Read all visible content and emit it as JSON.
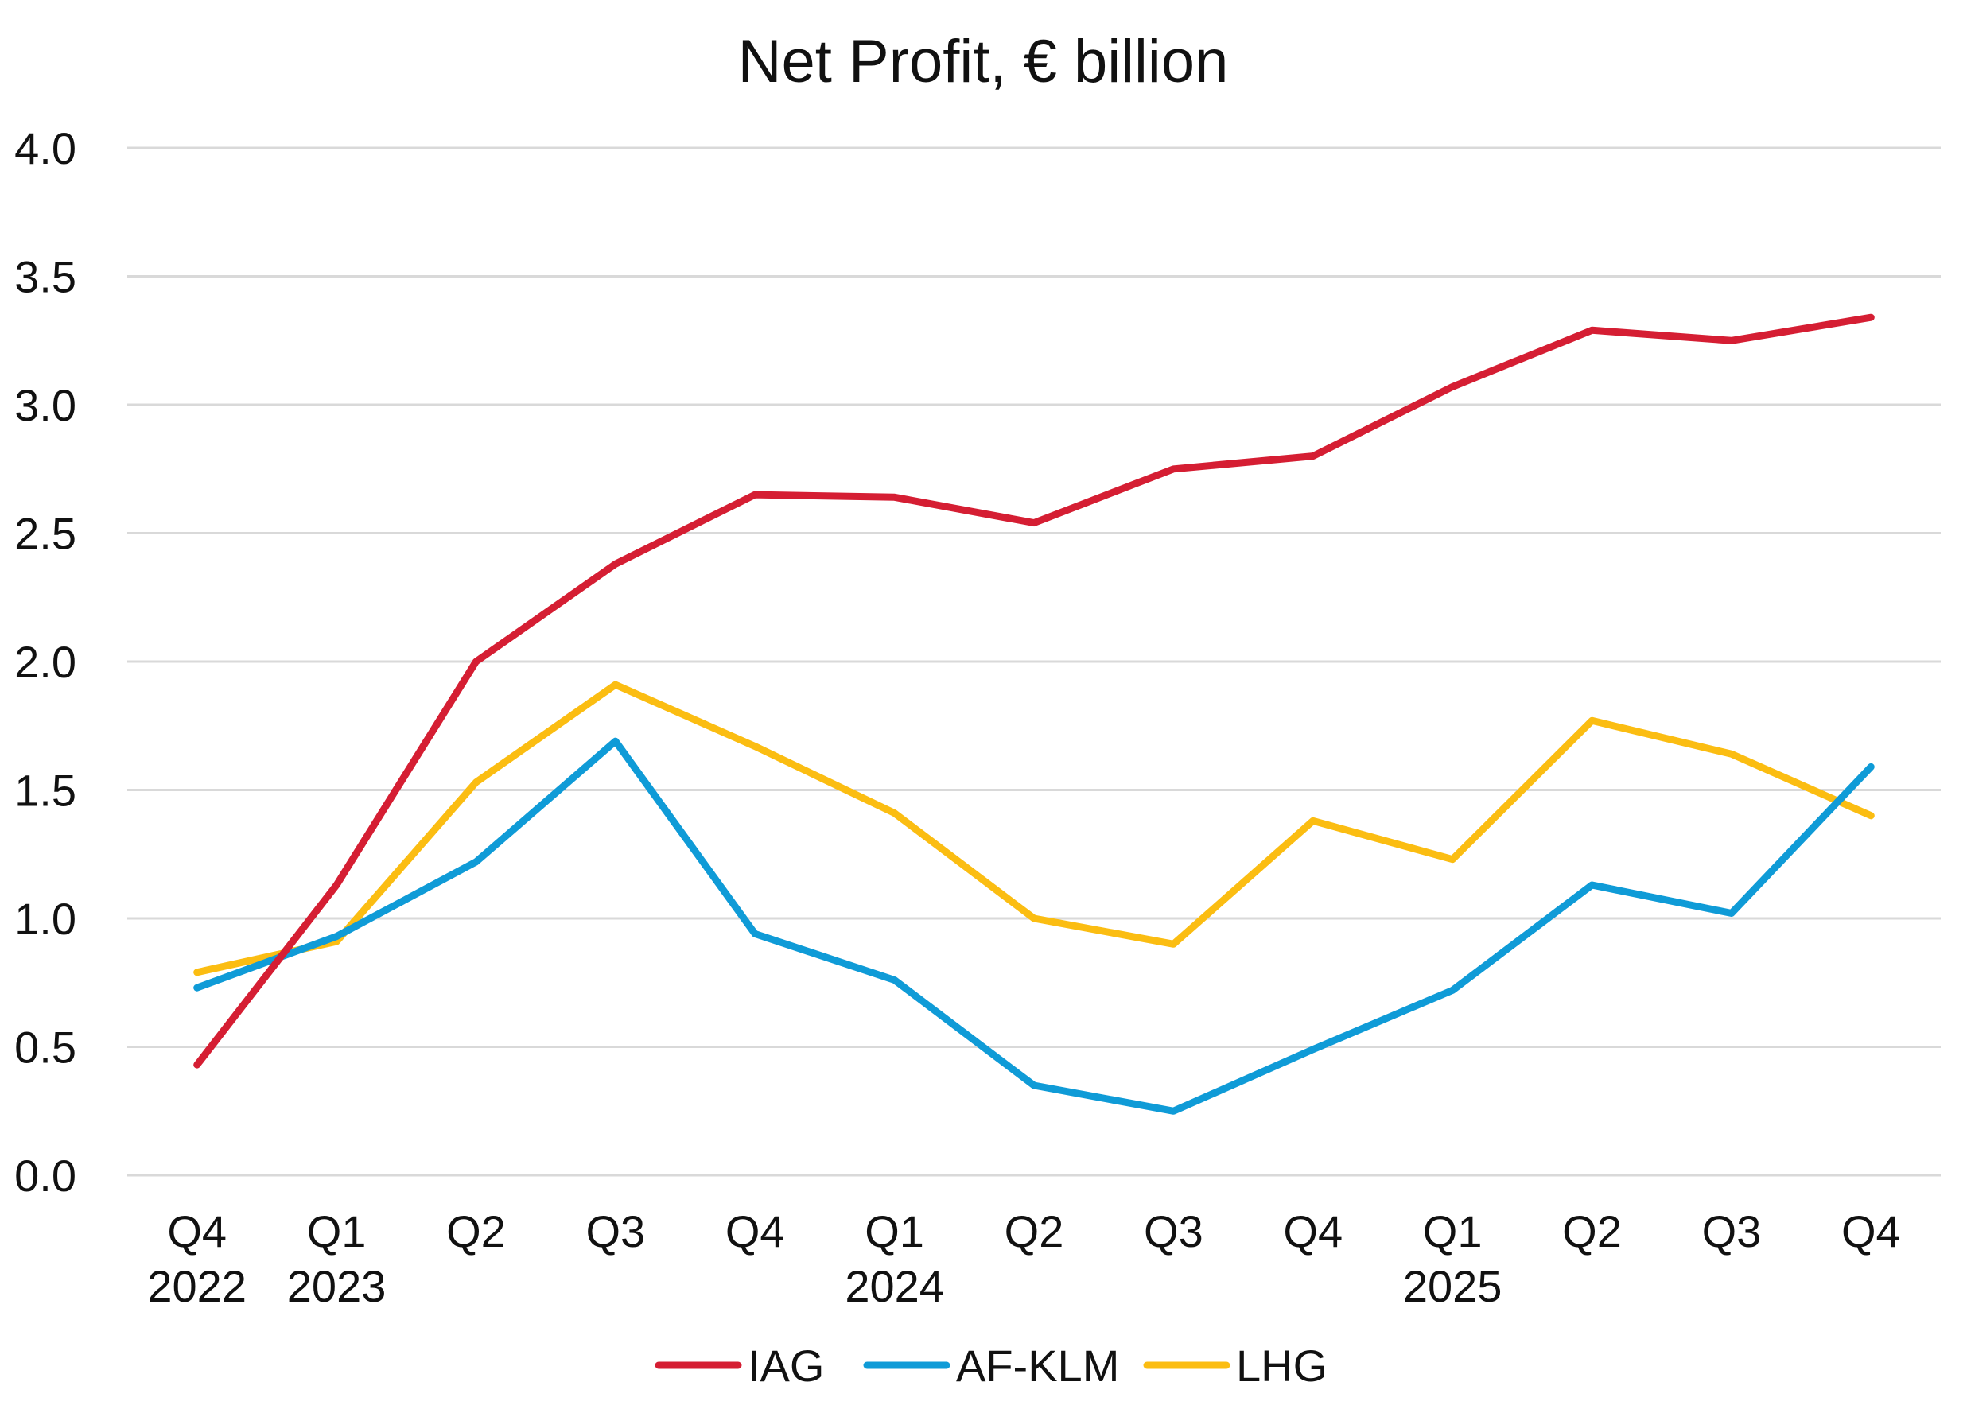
{
  "chart_data": {
    "type": "line",
    "title": "Net Profit, € billion",
    "xlabel": "",
    "ylabel": "",
    "ylim": [
      0,
      4.0
    ],
    "yticks": [
      "0.0",
      "0.5",
      "1.0",
      "1.5",
      "2.0",
      "2.5",
      "3.0",
      "3.5",
      "4.0"
    ],
    "grid": true,
    "legend_position": "bottom",
    "categories": [
      {
        "quarter": "Q4",
        "year": "2022"
      },
      {
        "quarter": "Q1",
        "year": "2023"
      },
      {
        "quarter": "Q2",
        "year": ""
      },
      {
        "quarter": "Q3",
        "year": ""
      },
      {
        "quarter": "Q4",
        "year": ""
      },
      {
        "quarter": "Q1",
        "year": "2024"
      },
      {
        "quarter": "Q2",
        "year": ""
      },
      {
        "quarter": "Q3",
        "year": ""
      },
      {
        "quarter": "Q4",
        "year": ""
      },
      {
        "quarter": "Q1",
        "year": "2025"
      },
      {
        "quarter": "Q2",
        "year": ""
      },
      {
        "quarter": "Q3",
        "year": ""
      },
      {
        "quarter": "Q4",
        "year": ""
      }
    ],
    "series": [
      {
        "name": "IAG",
        "color": "#d51e33",
        "values": [
          0.43,
          1.13,
          2.0,
          2.38,
          2.65,
          2.64,
          2.54,
          2.75,
          2.8,
          3.07,
          3.29,
          3.25,
          3.34
        ]
      },
      {
        "name": "AF-KLM",
        "color": "#0f9bd7",
        "values": [
          0.73,
          0.93,
          1.22,
          1.69,
          0.94,
          0.76,
          0.35,
          0.25,
          0.49,
          0.72,
          1.13,
          1.02,
          1.59
        ]
      },
      {
        "name": "LHG",
        "color": "#fbbd12",
        "values": [
          0.79,
          0.91,
          1.53,
          1.91,
          1.67,
          1.41,
          1.0,
          0.9,
          1.38,
          1.23,
          1.77,
          1.64,
          1.4
        ]
      }
    ]
  }
}
